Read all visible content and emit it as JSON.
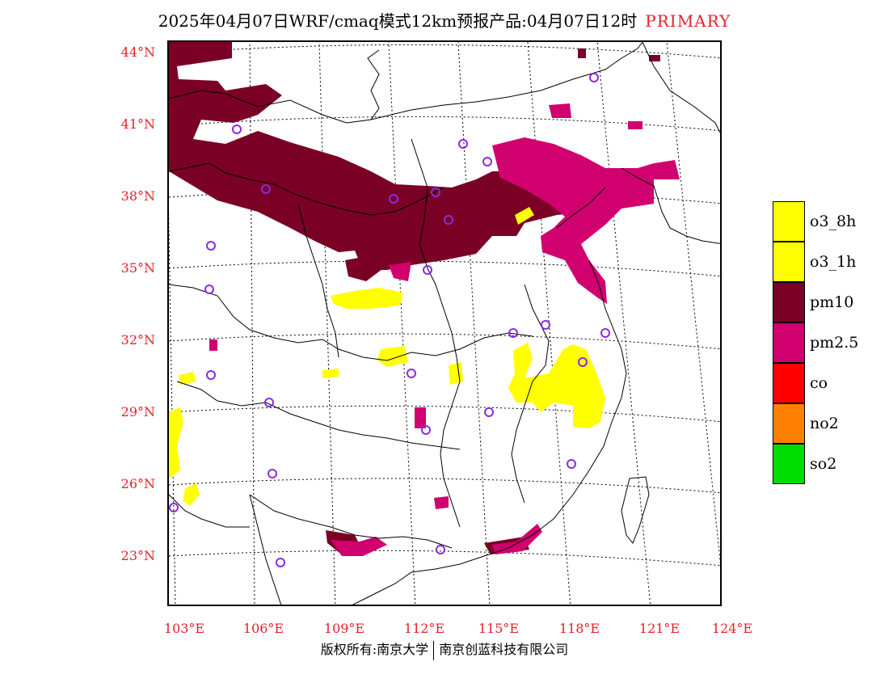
{
  "title": {
    "main": "2025年04月07日WRF/cmaq模式12km预报产品:04月07日12时",
    "tag": "PRIMARY"
  },
  "axes": {
    "lat_labels": [
      "44°N",
      "41°N",
      "38°N",
      "35°N",
      "32°N",
      "29°N",
      "26°N",
      "23°N"
    ],
    "lon_labels": [
      "103°E",
      "106°E",
      "109°E",
      "112°E",
      "115°E",
      "118°E",
      "121°E",
      "124°E"
    ]
  },
  "footer": {
    "left": "版权所有:南京大学",
    "right": "南京创蓝科技有限公司"
  },
  "legend": {
    "items": [
      {
        "label": "o3_8h",
        "color": "#ffff00"
      },
      {
        "label": "o3_1h",
        "color": "#ffff00"
      },
      {
        "label": "pm10",
        "color": "#7a0026"
      },
      {
        "label": "pm2.5",
        "color": "#d0006f"
      },
      {
        "label": "co",
        "color": "#ff0000"
      },
      {
        "label": "no2",
        "color": "#ff8000"
      },
      {
        "label": "so2",
        "color": "#00dd00"
      }
    ]
  },
  "colors": {
    "pm10": "#7a0026",
    "pm25": "#d0006f",
    "o3": "#ffff00",
    "station_marker": "#8a2be2",
    "axis_label": "#e8202a"
  }
}
